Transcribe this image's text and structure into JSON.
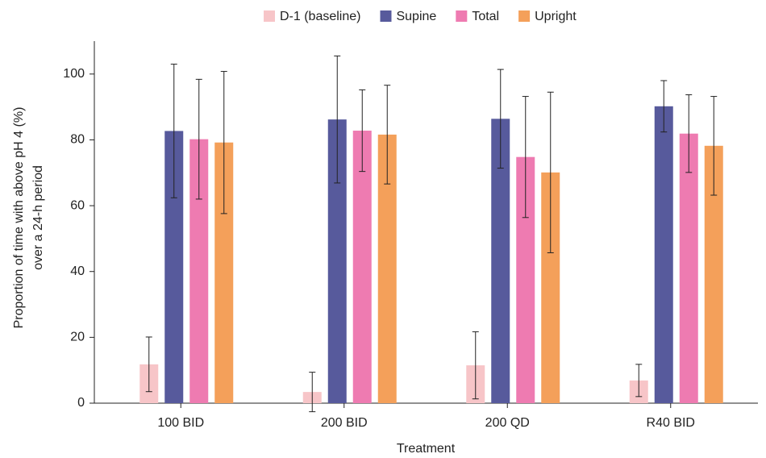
{
  "chart_data": {
    "type": "bar",
    "x_label": "Treatment",
    "y_label": [
      "Proportion of time with above pH 4 (%)",
      "over a 24-h period"
    ],
    "categories": [
      "100 BID",
      "200 BID",
      "200 QD",
      "R40 BID"
    ],
    "series": [
      {
        "name": "D-1 (baseline)",
        "color": "#f7c5c8",
        "values": [
          11.8,
          3.4,
          11.5,
          6.9
        ],
        "errors": [
          8.3,
          6,
          10.2,
          4.9
        ]
      },
      {
        "name": "Supine",
        "color": "#575a9c",
        "values": [
          82.7,
          86.2,
          86.4,
          90.2
        ],
        "errors": [
          20.3,
          19.3,
          15,
          7.8
        ]
      },
      {
        "name": "Total",
        "color": "#ee7bb1",
        "values": [
          80.2,
          82.8,
          74.8,
          81.9
        ],
        "errors": [
          18.2,
          12.4,
          18.4,
          11.8
        ]
      },
      {
        "name": "Upright",
        "color": "#f4a05a",
        "values": [
          79.2,
          81.6,
          70.1,
          78.2
        ],
        "errors": [
          21.6,
          15,
          24.4,
          15
        ]
      }
    ],
    "ylim": [
      0,
      110
    ],
    "yticks": [
      0,
      20,
      40,
      60,
      80,
      100
    ],
    "grid": false,
    "legend": "top"
  }
}
